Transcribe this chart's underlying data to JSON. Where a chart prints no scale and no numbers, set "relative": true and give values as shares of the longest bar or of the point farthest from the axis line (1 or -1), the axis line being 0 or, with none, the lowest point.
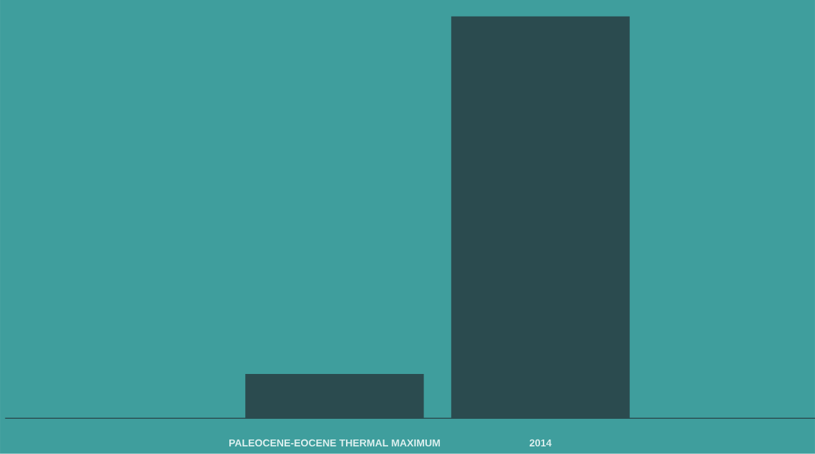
{
  "chart_data": {
    "type": "bar",
    "relative": true,
    "categories": [
      "PALEOCENE-EOCENE THERMAL MAXIMUM",
      "2014"
    ],
    "values": [
      0.11,
      1
    ],
    "color": "#2b4b4f"
  }
}
